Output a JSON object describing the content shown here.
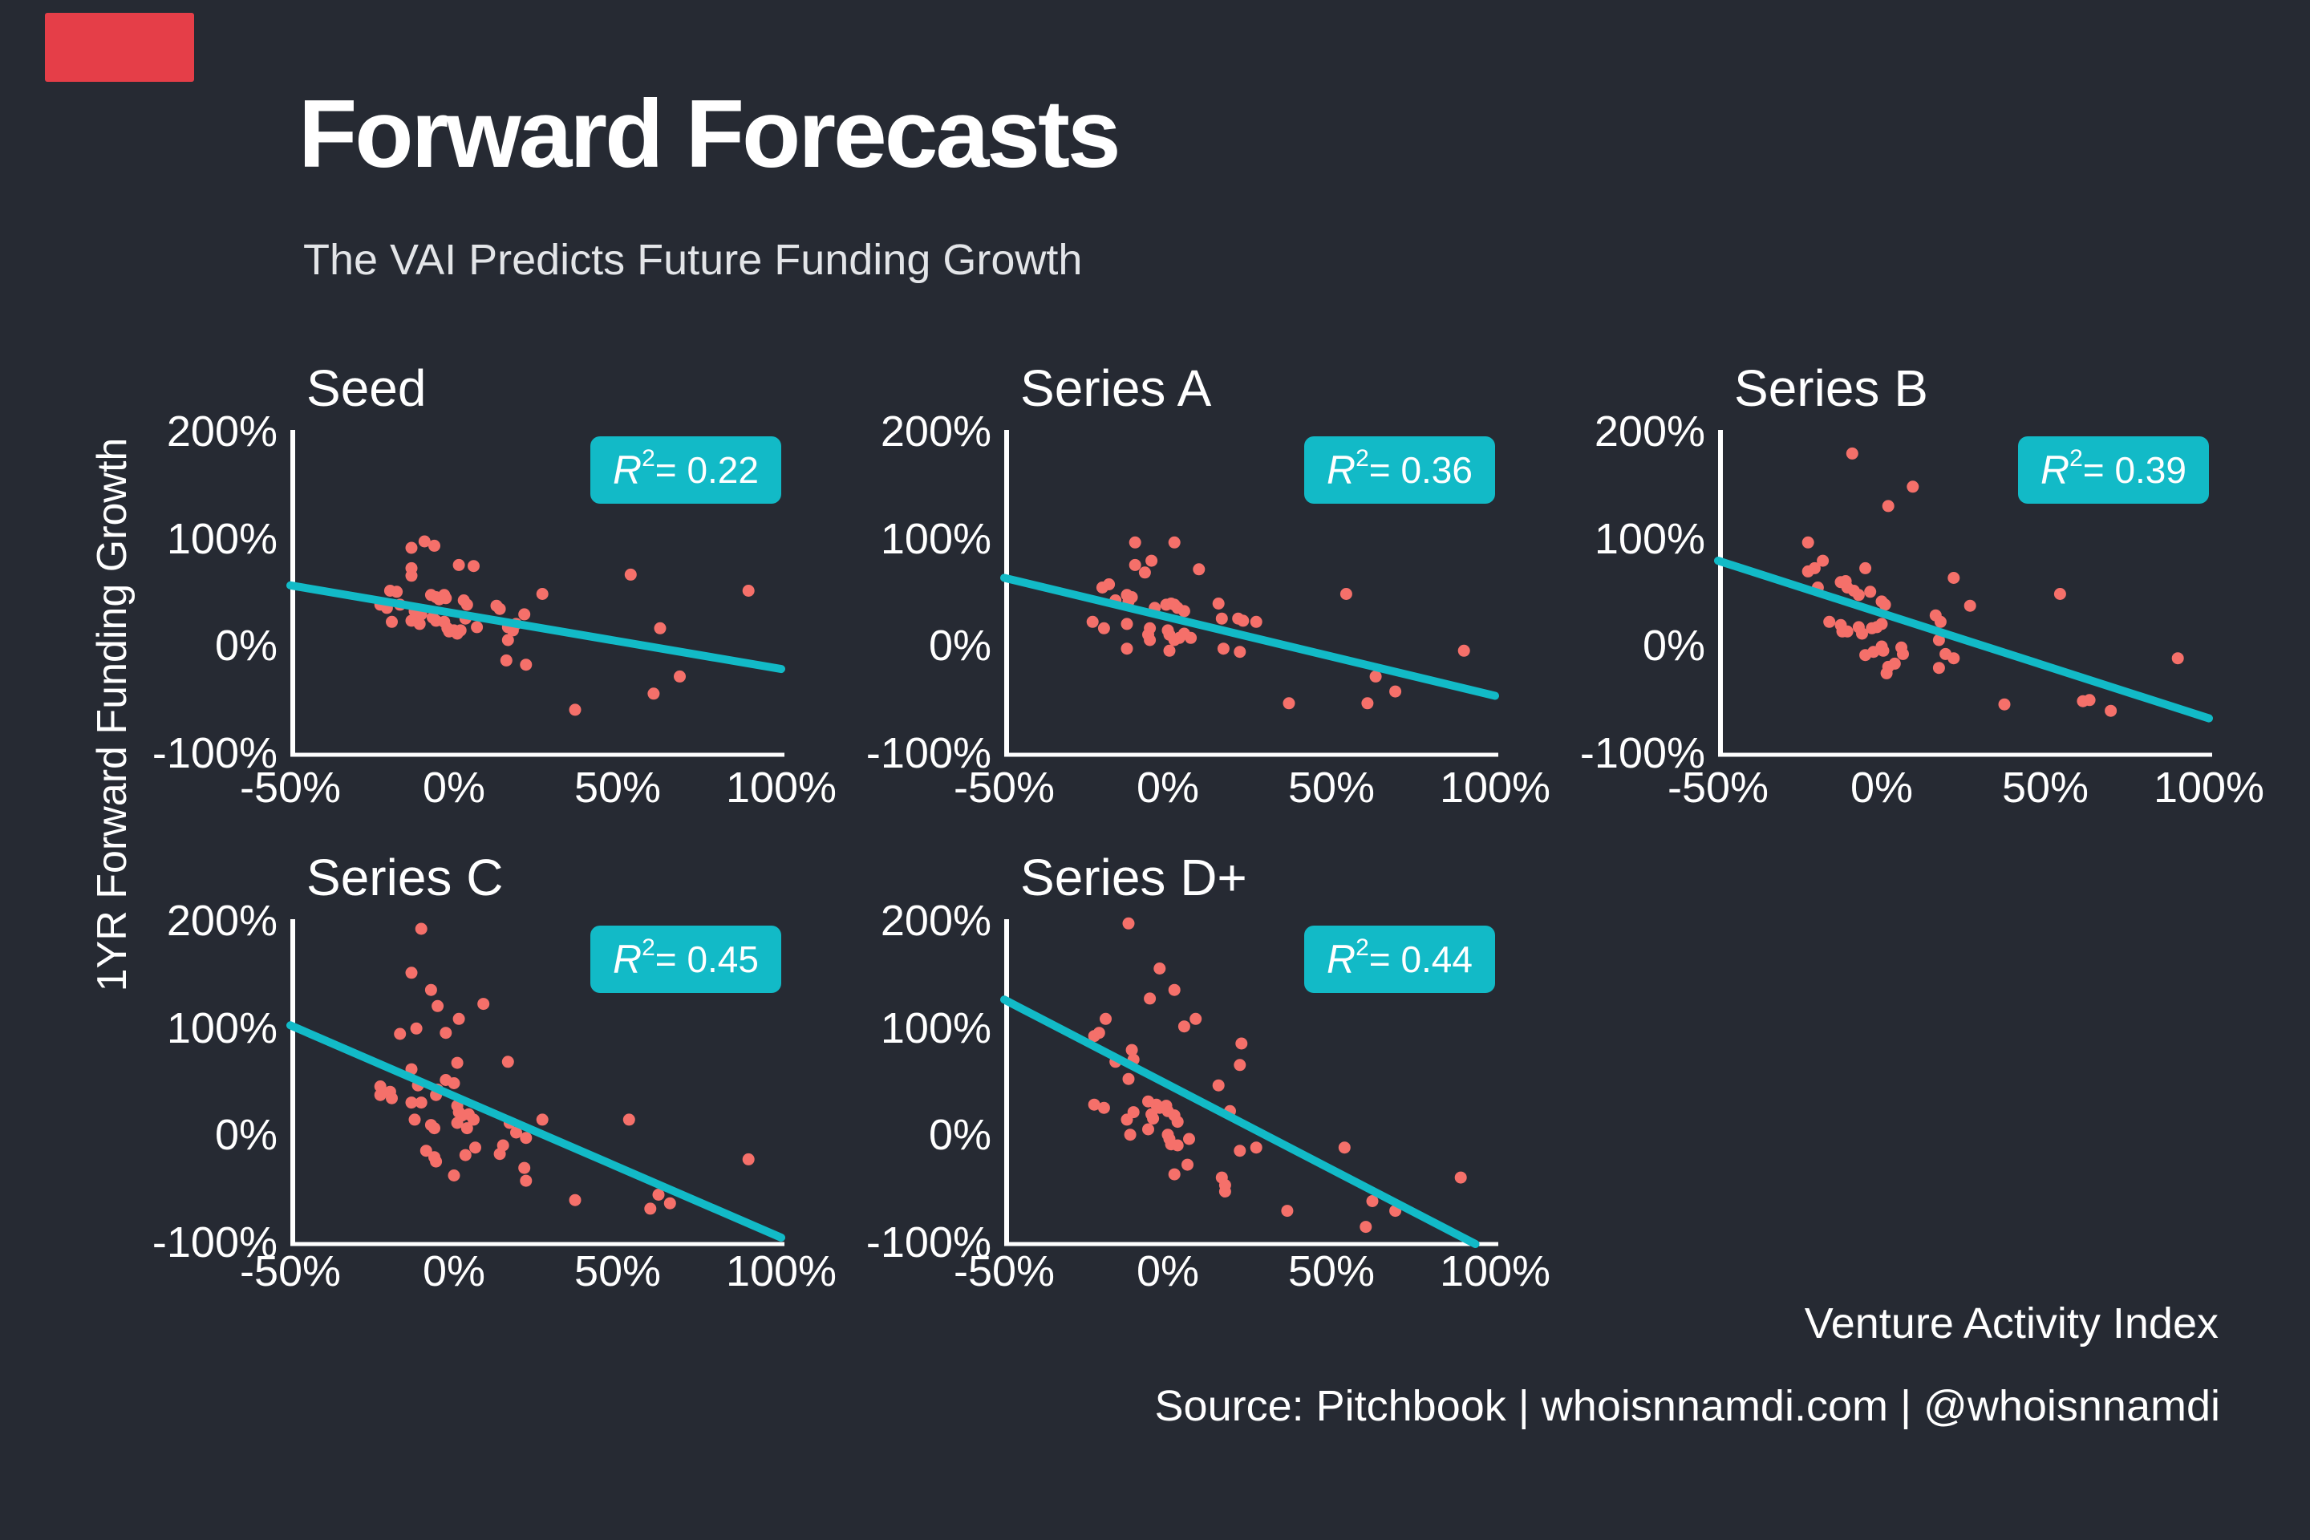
{
  "page": {
    "background": "#262A33",
    "accent_block_color": "#E53E48"
  },
  "header": {
    "title": "Forward Forecasts",
    "subtitle": "The VAI Predicts Future Funding Growth"
  },
  "y_axis_label": "1YR Forward Funding Growth",
  "footer": {
    "axis_caption": "Venture Activity Index",
    "source": "Source: Pitchbook | whoisnnamdi.com | @whoisnnamdi"
  },
  "colors": {
    "dot": "#F5706A",
    "trend": "#12BAC7",
    "badge_bg": "#12BAC7",
    "badge_text": "#FFFFFF",
    "axis": "#FFFFFF",
    "text": "#FFFFFF",
    "subtitle_text": "#E3E5E8"
  },
  "badge_format": {
    "symbol": "R",
    "sup": "2",
    "eq": " = "
  },
  "axes": {
    "x_ticks": [
      "-50%",
      "0%",
      "50%",
      "100%"
    ],
    "x_tick_values": [
      -50,
      0,
      50,
      100
    ],
    "y_ticks": [
      "200%",
      "100%",
      "0%",
      "-100%"
    ],
    "y_tick_values": [
      200,
      100,
      0,
      -100
    ],
    "xlim": [
      -50,
      100
    ],
    "ylim": [
      -100,
      200
    ],
    "grid": false
  },
  "chart_data": [
    {
      "type": "scatter",
      "title": "Seed",
      "r_squared": "0.22",
      "trend": {
        "x1": -50,
        "y1": 58,
        "x2": 100,
        "y2": -20
      },
      "points": [
        [
          -13,
          93
        ],
        [
          -9,
          99
        ],
        [
          -6,
          95
        ],
        [
          -13,
          74
        ],
        [
          -13,
          67
        ],
        [
          1.5,
          77
        ],
        [
          6,
          76
        ],
        [
          -19.5,
          53
        ],
        [
          -17.5,
          52
        ],
        [
          -7,
          49
        ],
        [
          -5.5,
          47
        ],
        [
          -4.5,
          45
        ],
        [
          -3,
          49
        ],
        [
          -2.5,
          46
        ],
        [
          3,
          44
        ],
        [
          4,
          40
        ],
        [
          -22.5,
          40
        ],
        [
          -20.5,
          37
        ],
        [
          -16.5,
          40
        ],
        [
          -12,
          34
        ],
        [
          -10,
          31
        ],
        [
          -19,
          24
        ],
        [
          -13,
          25
        ],
        [
          -10.5,
          22
        ],
        [
          -6.5,
          28
        ],
        [
          -5.5,
          25
        ],
        [
          -3,
          24
        ],
        [
          -2,
          18
        ],
        [
          -1.5,
          15
        ],
        [
          0,
          16
        ],
        [
          1,
          13
        ],
        [
          2,
          16
        ],
        [
          3.5,
          27
        ],
        [
          7,
          19
        ],
        [
          13,
          39
        ],
        [
          14,
          36
        ],
        [
          16.5,
          19
        ],
        [
          18,
          16
        ],
        [
          19,
          22
        ],
        [
          21.5,
          31
        ],
        [
          16.5,
          7
        ],
        [
          16,
          -12
        ],
        [
          22,
          -16
        ],
        [
          27,
          50
        ],
        [
          54,
          68
        ],
        [
          63,
          18
        ],
        [
          69,
          -27
        ],
        [
          61,
          -43
        ],
        [
          37,
          -58
        ],
        [
          90,
          53
        ]
      ]
    },
    {
      "type": "scatter",
      "title": "Series A",
      "r_squared": "0.36",
      "trend": {
        "x1": -50,
        "y1": 65,
        "x2": 100,
        "y2": -45
      },
      "points": [
        [
          -10,
          98
        ],
        [
          2,
          98
        ],
        [
          -10,
          77
        ],
        [
          -5,
          81
        ],
        [
          -7,
          70
        ],
        [
          9.5,
          73
        ],
        [
          -20,
          56
        ],
        [
          -18,
          59
        ],
        [
          -16,
          44
        ],
        [
          -12.5,
          49
        ],
        [
          -12,
          43
        ],
        [
          -11,
          47
        ],
        [
          -4,
          37
        ],
        [
          -0.5,
          40
        ],
        [
          1,
          41
        ],
        [
          2,
          40
        ],
        [
          3,
          37
        ],
        [
          5,
          34
        ],
        [
          15.5,
          41
        ],
        [
          16.5,
          27
        ],
        [
          21.5,
          27
        ],
        [
          23,
          25
        ],
        [
          27,
          24
        ],
        [
          -23,
          24
        ],
        [
          -19.5,
          18
        ],
        [
          -12.5,
          22
        ],
        [
          -5.5,
          18
        ],
        [
          -6,
          12
        ],
        [
          -5.5,
          7
        ],
        [
          0,
          16
        ],
        [
          0.5,
          12
        ],
        [
          2,
          7
        ],
        [
          3.5,
          9
        ],
        [
          5,
          13
        ],
        [
          7,
          9
        ],
        [
          -12.5,
          -1
        ],
        [
          0.5,
          -3
        ],
        [
          17,
          -1
        ],
        [
          22,
          -4
        ],
        [
          54.5,
          50
        ],
        [
          63.5,
          -27
        ],
        [
          69.5,
          -41
        ],
        [
          37,
          -52
        ],
        [
          61,
          -52
        ],
        [
          90.5,
          -3
        ]
      ]
    },
    {
      "type": "scatter",
      "title": "Series B",
      "r_squared": "0.39",
      "trend": {
        "x1": -50,
        "y1": 81,
        "x2": 100,
        "y2": -66
      },
      "points": [
        [
          -9,
          181
        ],
        [
          9.5,
          150
        ],
        [
          2,
          132
        ],
        [
          -22.5,
          98
        ],
        [
          -18,
          81
        ],
        [
          -22.5,
          71
        ],
        [
          -20.5,
          74
        ],
        [
          -5,
          74
        ],
        [
          22,
          65
        ],
        [
          -19.5,
          56
        ],
        [
          -12.5,
          61
        ],
        [
          -11,
          62
        ],
        [
          -10.5,
          56
        ],
        [
          -8.5,
          53
        ],
        [
          -7,
          49
        ],
        [
          -3.5,
          52
        ],
        [
          0,
          43
        ],
        [
          1,
          40
        ],
        [
          54.5,
          50
        ],
        [
          27,
          39
        ],
        [
          16.5,
          30
        ],
        [
          18,
          24
        ],
        [
          -16,
          24
        ],
        [
          -12.5,
          21
        ],
        [
          -12,
          15
        ],
        [
          -10.5,
          15
        ],
        [
          -7,
          19
        ],
        [
          -6,
          13
        ],
        [
          -3,
          18
        ],
        [
          -1.5,
          19
        ],
        [
          0,
          22
        ],
        [
          -5,
          -7
        ],
        [
          -2.5,
          -4
        ],
        [
          0,
          1
        ],
        [
          0.5,
          -3
        ],
        [
          1.5,
          -24
        ],
        [
          2,
          -18
        ],
        [
          4,
          -15
        ],
        [
          6,
          0
        ],
        [
          6.5,
          -6
        ],
        [
          17.5,
          7
        ],
        [
          17.5,
          -19
        ],
        [
          19.5,
          -6
        ],
        [
          22,
          -10
        ],
        [
          37.5,
          -53
        ],
        [
          61.5,
          -50
        ],
        [
          63.5,
          -49
        ],
        [
          70,
          -59
        ],
        [
          90.5,
          -10
        ]
      ]
    },
    {
      "type": "scatter",
      "title": "Series C",
      "r_squared": "0.45",
      "trend": {
        "x1": -50,
        "y1": 104,
        "x2": 100,
        "y2": -94
      },
      "points": [
        [
          -10,
          194
        ],
        [
          -13,
          153
        ],
        [
          -7,
          137
        ],
        [
          -5,
          122
        ],
        [
          9,
          124
        ],
        [
          1.5,
          110
        ],
        [
          -11.5,
          101
        ],
        [
          -16.5,
          96
        ],
        [
          -2.5,
          97
        ],
        [
          1,
          69
        ],
        [
          16.5,
          70
        ],
        [
          -13,
          63
        ],
        [
          -11,
          48
        ],
        [
          -22.5,
          47
        ],
        [
          -22.5,
          39
        ],
        [
          -19.5,
          42
        ],
        [
          -19,
          36
        ],
        [
          -2.5,
          53
        ],
        [
          0,
          50
        ],
        [
          -5,
          44
        ],
        [
          -5.5,
          39
        ],
        [
          -13,
          32
        ],
        [
          -10,
          32
        ],
        [
          1,
          29
        ],
        [
          1.5,
          23
        ],
        [
          2.5,
          20
        ],
        [
          4.5,
          21
        ],
        [
          6,
          16
        ],
        [
          -12,
          16
        ],
        [
          -7,
          11
        ],
        [
          -6,
          8
        ],
        [
          1,
          13
        ],
        [
          4,
          8
        ],
        [
          17,
          13
        ],
        [
          19,
          4
        ],
        [
          22,
          -1
        ],
        [
          27,
          16
        ],
        [
          53.5,
          16
        ],
        [
          15,
          -8
        ],
        [
          6.5,
          -10
        ],
        [
          -8.5,
          -13
        ],
        [
          3.5,
          -17
        ],
        [
          14,
          -16
        ],
        [
          -6,
          -19
        ],
        [
          -5.5,
          -23
        ],
        [
          21.5,
          -29
        ],
        [
          0,
          -36
        ],
        [
          22,
          -41
        ],
        [
          90,
          -21
        ],
        [
          37,
          -59
        ],
        [
          62.5,
          -54
        ],
        [
          66,
          -62
        ],
        [
          60,
          -67
        ]
      ]
    },
    {
      "type": "scatter",
      "title": "Series D+",
      "r_squared": "0.44",
      "trend": {
        "x1": -50,
        "y1": 128,
        "x2": 94,
        "y2": -100
      },
      "points": [
        [
          -12,
          199
        ],
        [
          -2.5,
          157
        ],
        [
          2,
          137
        ],
        [
          -5.5,
          129
        ],
        [
          -19,
          110
        ],
        [
          8.5,
          110
        ],
        [
          5,
          103
        ],
        [
          -22.5,
          94
        ],
        [
          -21,
          97
        ],
        [
          22.5,
          87
        ],
        [
          -11,
          81
        ],
        [
          -16,
          70
        ],
        [
          -10.5,
          72
        ],
        [
          22,
          67
        ],
        [
          -12,
          54
        ],
        [
          15.5,
          48
        ],
        [
          -22.5,
          30
        ],
        [
          -19.5,
          27
        ],
        [
          -6,
          33
        ],
        [
          -3.5,
          30
        ],
        [
          -2.5,
          27
        ],
        [
          -0.5,
          29
        ],
        [
          0,
          24
        ],
        [
          -10.5,
          23
        ],
        [
          -5,
          21
        ],
        [
          -4.5,
          17
        ],
        [
          -12.5,
          16
        ],
        [
          19,
          24
        ],
        [
          2,
          20
        ],
        [
          3,
          14
        ],
        [
          -6,
          7
        ],
        [
          -11.5,
          2
        ],
        [
          0,
          2
        ],
        [
          0.5,
          -2
        ],
        [
          1,
          -7
        ],
        [
          3,
          -8
        ],
        [
          6.5,
          -2
        ],
        [
          22,
          -13
        ],
        [
          27,
          -10
        ],
        [
          54,
          -10
        ],
        [
          6,
          -26
        ],
        [
          2,
          -35
        ],
        [
          16.5,
          -38
        ],
        [
          17.5,
          -45
        ],
        [
          17.5,
          -51
        ],
        [
          89.5,
          -38
        ],
        [
          36.5,
          -69
        ],
        [
          62.5,
          -60
        ],
        [
          69.5,
          -69
        ],
        [
          60.5,
          -84
        ]
      ]
    }
  ]
}
